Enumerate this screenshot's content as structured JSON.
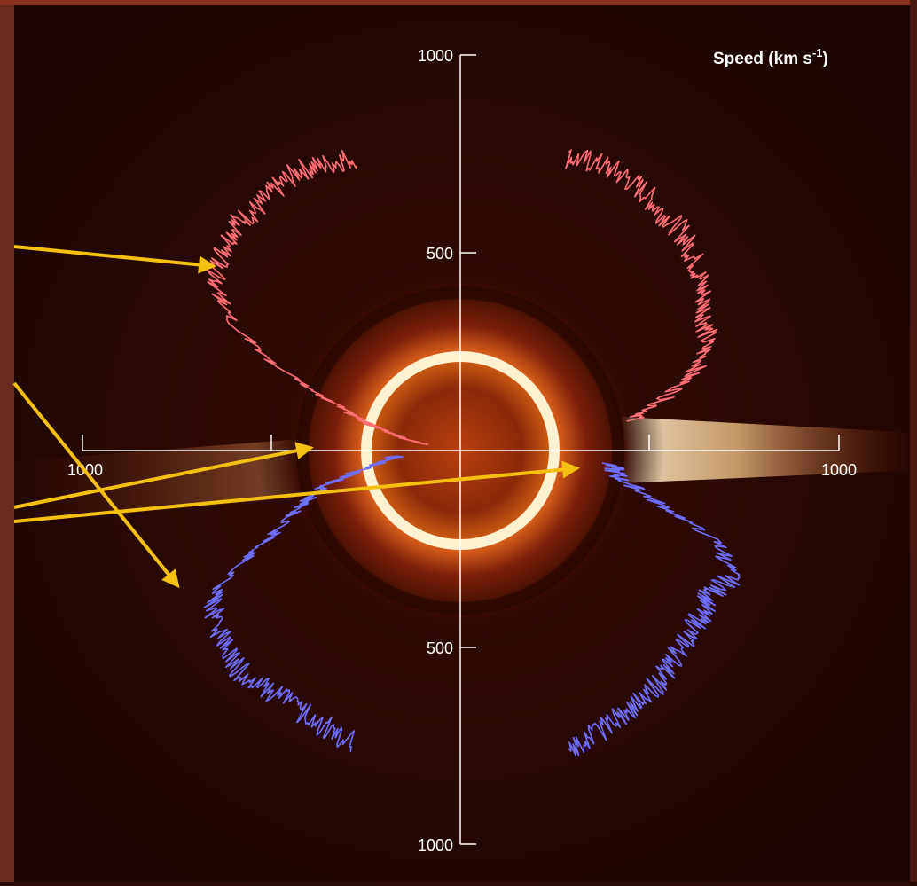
{
  "chart_data": {
    "type": "polar-line",
    "units_label_base": "Speed (km s",
    "units_label_sup": "-1",
    "units_label_end": ")",
    "rlim": [
      0,
      1000
    ],
    "axis_ticks": {
      "top": [
        "1000",
        "500"
      ],
      "bottom": [
        "500",
        "1000"
      ],
      "left": "1000",
      "right": "1000"
    },
    "grid": false,
    "series": [
      {
        "color": "#ff6f73",
        "profile_deg_from_north": [
          [
            -80,
            95
          ],
          [
            -75,
            210
          ],
          [
            -70,
            320
          ],
          [
            -65,
            520
          ],
          [
            -60,
            680
          ],
          [
            -55,
            760
          ],
          [
            -50,
            790
          ],
          [
            -45,
            810
          ],
          [
            -40,
            800
          ],
          [
            -35,
            810
          ],
          [
            -30,
            820
          ],
          [
            -25,
            800
          ],
          [
            -20,
            790
          ],
          [
            20,
            790
          ],
          [
            25,
            805
          ],
          [
            30,
            810
          ],
          [
            35,
            805
          ],
          [
            40,
            790
          ],
          [
            45,
            790
          ],
          [
            50,
            770
          ],
          [
            55,
            745
          ],
          [
            60,
            715
          ],
          [
            65,
            690
          ],
          [
            70,
            650
          ],
          [
            75,
            550
          ],
          [
            80,
            440
          ]
        ]
      },
      {
        "color": "#6f6fff",
        "profile_deg_from_north": [
          [
            -160,
            790
          ],
          [
            -155,
            780
          ],
          [
            -150,
            775
          ],
          [
            -145,
            770
          ],
          [
            -140,
            780
          ],
          [
            -135,
            790
          ],
          [
            -130,
            775
          ],
          [
            -125,
            760
          ],
          [
            -120,
            720
          ],
          [
            -115,
            540
          ],
          [
            -110,
            440
          ],
          [
            -105,
            360
          ],
          [
            -100,
            230
          ],
          [
            -95,
            160
          ],
          [
            95,
            380
          ],
          [
            100,
            410
          ],
          [
            105,
            520
          ],
          [
            110,
            700
          ],
          [
            115,
            760
          ],
          [
            120,
            730
          ],
          [
            125,
            740
          ],
          [
            130,
            745
          ],
          [
            135,
            760
          ],
          [
            140,
            775
          ],
          [
            145,
            780
          ],
          [
            150,
            790
          ],
          [
            155,
            795
          ],
          [
            160,
            800
          ]
        ]
      }
    ],
    "annotation_arrows": 4,
    "background_image": "solar corona with sun disk"
  }
}
